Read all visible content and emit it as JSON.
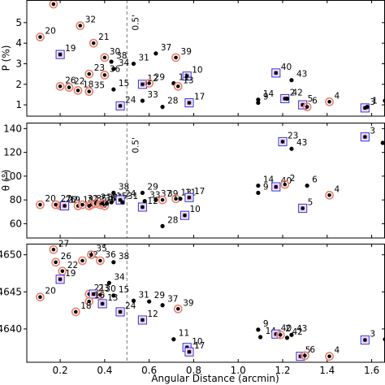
{
  "chart_data": [
    {
      "type": "scatter",
      "ylabel": "P (%)",
      "yticks": [
        1,
        2,
        3,
        4,
        5
      ],
      "ylim": [
        0.45,
        6.1
      ],
      "xlim": [
        0.05,
        1.66
      ],
      "vline": {
        "x": 0.5,
        "label": "0.5'"
      },
      "points": [
        {
          "id": "27",
          "x": 0.17,
          "y": 5.9,
          "m": "red"
        },
        {
          "id": "20",
          "x": 0.11,
          "y": 4.3,
          "m": "red"
        },
        {
          "id": "32",
          "x": 0.29,
          "y": 4.85,
          "m": "red"
        },
        {
          "id": "21",
          "x": 0.35,
          "y": 4.0,
          "m": "red"
        },
        {
          "id": "19",
          "x": 0.2,
          "y": 3.45,
          "m": "sq"
        },
        {
          "id": "30",
          "x": 0.4,
          "y": 3.3,
          "m": "red"
        },
        {
          "id": "38",
          "x": 0.43,
          "y": 3.1,
          "m": "blk"
        },
        {
          "id": "31",
          "x": 0.53,
          "y": 3.0,
          "m": "blk"
        },
        {
          "id": "37",
          "x": 0.63,
          "y": 3.5,
          "m": "blk"
        },
        {
          "id": "39",
          "x": 0.72,
          "y": 3.3,
          "m": "red"
        },
        {
          "id": "34",
          "x": 0.44,
          "y": 2.75,
          "m": "blk"
        },
        {
          "id": "10",
          "x": 0.77,
          "y": 2.4,
          "m": "sq"
        },
        {
          "id": "40",
          "x": 1.17,
          "y": 2.55,
          "m": "sq"
        },
        {
          "id": "43",
          "x": 1.24,
          "y": 2.2,
          "m": "blk"
        },
        {
          "id": "23",
          "x": 0.33,
          "y": 2.5,
          "m": "red"
        },
        {
          "id": "36",
          "x": 0.4,
          "y": 2.45,
          "m": "red"
        },
        {
          "id": "26",
          "x": 0.2,
          "y": 1.9,
          "m": "red"
        },
        {
          "id": "22",
          "x": 0.24,
          "y": 1.85,
          "m": "red"
        },
        {
          "id": "18",
          "x": 0.28,
          "y": 1.7,
          "m": "red"
        },
        {
          "id": "35",
          "x": 0.33,
          "y": 1.65,
          "m": "red"
        },
        {
          "id": "15",
          "x": 0.44,
          "y": 1.75,
          "m": "blk"
        },
        {
          "id": "12",
          "x": 0.57,
          "y": 2.0,
          "m": "sq"
        },
        {
          "id": "29",
          "x": 0.6,
          "y": 2.05,
          "m": "red"
        },
        {
          "id": "11",
          "x": 0.71,
          "y": 2.05,
          "m": "blk"
        },
        {
          "id": "13",
          "x": 0.73,
          "y": 1.9,
          "m": "red"
        },
        {
          "id": "33",
          "x": 0.57,
          "y": 1.2,
          "m": "blk"
        },
        {
          "id": "28",
          "x": 0.66,
          "y": 0.9,
          "m": "blk"
        },
        {
          "id": "24",
          "x": 0.47,
          "y": 0.95,
          "m": "sq"
        },
        {
          "id": "17",
          "x": 0.78,
          "y": 1.1,
          "m": "sq"
        },
        {
          "id": "9",
          "x": 1.09,
          "y": 1.1,
          "m": "blk"
        },
        {
          "id": "14",
          "x": 1.09,
          "y": 1.25,
          "m": "blk"
        },
        {
          "id": "2",
          "x": 1.21,
          "y": 1.3,
          "m": "sq"
        },
        {
          "id": "42",
          "x": 1.22,
          "y": 1.3,
          "m": "blk"
        },
        {
          "id": "5",
          "x": 1.29,
          "y": 1.0,
          "m": "sq"
        },
        {
          "id": "6",
          "x": 1.31,
          "y": 0.9,
          "m": "red"
        },
        {
          "id": "4",
          "x": 1.41,
          "y": 1.15,
          "m": "red"
        },
        {
          "id": "3",
          "x": 1.57,
          "y": 0.85,
          "m": "sq"
        },
        {
          "id": "1",
          "x": 1.58,
          "y": 0.9,
          "m": "blk"
        },
        {
          "id": "44",
          "x": 1.66,
          "y": 1.2,
          "m": "blk"
        }
      ]
    },
    {
      "type": "scatter",
      "ylabel": "θ (°)",
      "yticks": [
        60,
        80,
        100,
        120,
        140
      ],
      "ylim": [
        48,
        145
      ],
      "xlim": [
        0.05,
        1.66
      ],
      "vline": {
        "x": 0.5,
        "label": "0.5'"
      },
      "points": [
        {
          "id": "20",
          "x": 0.11,
          "y": 76,
          "m": "red"
        },
        {
          "id": "26",
          "x": 0.2,
          "y": 75,
          "m": "red"
        },
        {
          "id": "22",
          "x": 0.21,
          "y": 75,
          "m": "red"
        },
        {
          "id": "27",
          "x": 0.18,
          "y": 76,
          "m": "red"
        },
        {
          "id": "19",
          "x": 0.22,
          "y": 75,
          "m": "sq"
        },
        {
          "id": "18",
          "x": 0.28,
          "y": 75,
          "m": "red"
        },
        {
          "id": "32",
          "x": 0.3,
          "y": 76,
          "m": "red"
        },
        {
          "id": "35",
          "x": 0.34,
          "y": 76,
          "m": "red"
        },
        {
          "id": "21",
          "x": 0.36,
          "y": 77,
          "m": "red"
        },
        {
          "id": "23",
          "x": 0.33,
          "y": 75,
          "m": "red"
        },
        {
          "id": "36",
          "x": 0.38,
          "y": 76,
          "m": "red"
        },
        {
          "id": "16",
          "x": 0.4,
          "y": 75,
          "m": "red"
        },
        {
          "id": "30",
          "x": 0.39,
          "y": 77,
          "m": "red"
        },
        {
          "id": "34",
          "x": 0.41,
          "y": 77,
          "m": "blk"
        },
        {
          "id": "15",
          "x": 0.43,
          "y": 78,
          "m": "blk"
        },
        {
          "id": "38",
          "x": 0.44,
          "y": 86,
          "m": "blk"
        },
        {
          "id": "24",
          "x": 0.47,
          "y": 80,
          "m": "sq"
        },
        {
          "id": "31",
          "x": 0.48,
          "y": 78,
          "m": "blk"
        },
        {
          "id": "12",
          "x": 0.57,
          "y": 74,
          "m": "sq"
        },
        {
          "id": "33",
          "x": 0.58,
          "y": 79,
          "m": "blk"
        },
        {
          "id": "29",
          "x": 0.57,
          "y": 86,
          "m": "blk"
        },
        {
          "id": "37",
          "x": 0.63,
          "y": 80,
          "m": "blk"
        },
        {
          "id": "39",
          "x": 0.66,
          "y": 80,
          "m": "red"
        },
        {
          "id": "13",
          "x": 0.72,
          "y": 81,
          "m": "red"
        },
        {
          "id": "11",
          "x": 0.74,
          "y": 81,
          "m": "blk"
        },
        {
          "id": "17",
          "x": 0.78,
          "y": 82,
          "m": "sq"
        },
        {
          "id": "10",
          "x": 0.76,
          "y": 67,
          "m": "sq"
        },
        {
          "id": "28",
          "x": 0.66,
          "y": 58,
          "m": "blk"
        },
        {
          "id": "23",
          "x": 1.2,
          "y": 129,
          "m": "sq",
          "lbl": "23"
        },
        {
          "id": "43",
          "x": 1.24,
          "y": 123,
          "m": "blk"
        },
        {
          "id": "14",
          "x": 1.09,
          "y": 92,
          "m": "blk"
        },
        {
          "id": "9",
          "x": 1.09,
          "y": 86,
          "m": "blk"
        },
        {
          "id": "40",
          "x": 1.17,
          "y": 91,
          "m": "sq"
        },
        {
          "id": "2",
          "x": 1.21,
          "y": 93,
          "m": "red"
        },
        {
          "id": "6",
          "x": 1.31,
          "y": 92,
          "m": "blk"
        },
        {
          "id": "5",
          "x": 1.29,
          "y": 73,
          "m": "sq"
        },
        {
          "id": "4",
          "x": 1.41,
          "y": 84,
          "m": "red"
        },
        {
          "id": "3",
          "x": 1.57,
          "y": 133,
          "m": "sq"
        },
        {
          "id": "1",
          "x": 1.65,
          "y": 128,
          "m": "blk"
        }
      ]
    },
    {
      "type": "scatter",
      "ylabel": "",
      "yticks": [
        0.464,
        0.4645,
        0.465
      ],
      "yticklabels": [
        ".4640",
        ".4645",
        ".4650"
      ],
      "ylim": [
        0.46355,
        0.46515
      ],
      "xlim": [
        0.05,
        1.66
      ],
      "xticks": [
        0.2,
        0.4,
        0.6,
        0.8,
        1.0,
        1.2,
        1.4,
        1.6
      ],
      "xticklabels": [
        "0.2",
        "0.4",
        "0.6",
        "0.8",
        "1.0",
        "1.2",
        "1.4",
        "1.6"
      ],
      "xlabel": "Angular Distance (arcmin)",
      "vline": {
        "x": 0.5,
        "label": ""
      },
      "points": [
        {
          "id": "27",
          "x": 0.17,
          "y": 0.46507,
          "m": "red"
        },
        {
          "id": "26",
          "x": 0.18,
          "y": 0.4649,
          "m": "red"
        },
        {
          "id": "22",
          "x": 0.21,
          "y": 0.46478,
          "m": "red"
        },
        {
          "id": "19",
          "x": 0.2,
          "y": 0.46467,
          "m": "sq"
        },
        {
          "id": "20",
          "x": 0.11,
          "y": 0.46443,
          "m": "red"
        },
        {
          "id": "32",
          "x": 0.3,
          "y": 0.46492,
          "m": "red"
        },
        {
          "id": "35",
          "x": 0.34,
          "y": 0.465,
          "m": "red"
        },
        {
          "id": "36",
          "x": 0.38,
          "y": 0.46492,
          "m": "red"
        },
        {
          "id": "38",
          "x": 0.44,
          "y": 0.4649,
          "m": "blk"
        },
        {
          "id": "34",
          "x": 0.42,
          "y": 0.46462,
          "m": "blk"
        },
        {
          "id": "21",
          "x": 0.33,
          "y": 0.46447,
          "m": "red"
        },
        {
          "id": "23",
          "x": 0.35,
          "y": 0.46447,
          "m": "sq"
        },
        {
          "id": "30",
          "x": 0.38,
          "y": 0.46446,
          "m": "red"
        },
        {
          "id": "15",
          "x": 0.44,
          "y": 0.46445,
          "m": "blk"
        },
        {
          "id": "16",
          "x": 0.33,
          "y": 0.46437,
          "m": "red"
        },
        {
          "id": "13",
          "x": 0.39,
          "y": 0.46434,
          "m": "sq"
        },
        {
          "id": "18",
          "x": 0.27,
          "y": 0.46423,
          "m": "red"
        },
        {
          "id": "24",
          "x": 0.47,
          "y": 0.46423,
          "m": "sq"
        },
        {
          "id": "31",
          "x": 0.53,
          "y": 0.46438,
          "m": "blk"
        },
        {
          "id": "29",
          "x": 0.6,
          "y": 0.46437,
          "m": "blk"
        },
        {
          "id": "37",
          "x": 0.66,
          "y": 0.46432,
          "m": "blk"
        },
        {
          "id": "39",
          "x": 0.73,
          "y": 0.46427,
          "m": "red"
        },
        {
          "id": "12",
          "x": 0.57,
          "y": 0.46412,
          "m": "sq"
        },
        {
          "id": "11",
          "x": 0.71,
          "y": 0.46386,
          "m": "blk"
        },
        {
          "id": "10",
          "x": 0.77,
          "y": 0.46375,
          "m": "sq"
        },
        {
          "id": "17",
          "x": 0.78,
          "y": 0.46369,
          "m": "sq"
        },
        {
          "id": "9",
          "x": 1.09,
          "y": 0.46399,
          "m": "blk"
        },
        {
          "id": "14",
          "x": 1.1,
          "y": 0.46389,
          "m": "blk"
        },
        {
          "id": "40",
          "x": 1.17,
          "y": 0.46393,
          "m": "sq"
        },
        {
          "id": "2",
          "x": 1.19,
          "y": 0.46392,
          "m": "red"
        },
        {
          "id": "42",
          "x": 1.22,
          "y": 0.46388,
          "m": "blk"
        },
        {
          "id": "43",
          "x": 1.24,
          "y": 0.46392,
          "m": "blk"
        },
        {
          "id": "5",
          "x": 1.28,
          "y": 0.46363,
          "m": "sq"
        },
        {
          "id": "6",
          "x": 1.3,
          "y": 0.46364,
          "m": "red"
        },
        {
          "id": "4",
          "x": 1.41,
          "y": 0.46363,
          "m": "red"
        },
        {
          "id": "3",
          "x": 1.57,
          "y": 0.46385,
          "m": "sq"
        },
        {
          "id": "1",
          "x": 1.66,
          "y": 0.46386,
          "m": "blk"
        }
      ]
    }
  ],
  "colors": {
    "red_ring": "#e8826e",
    "square": "#3b3bd6",
    "square_fill": "#c78fd9",
    "point": "#000000",
    "vline": "#777777"
  }
}
